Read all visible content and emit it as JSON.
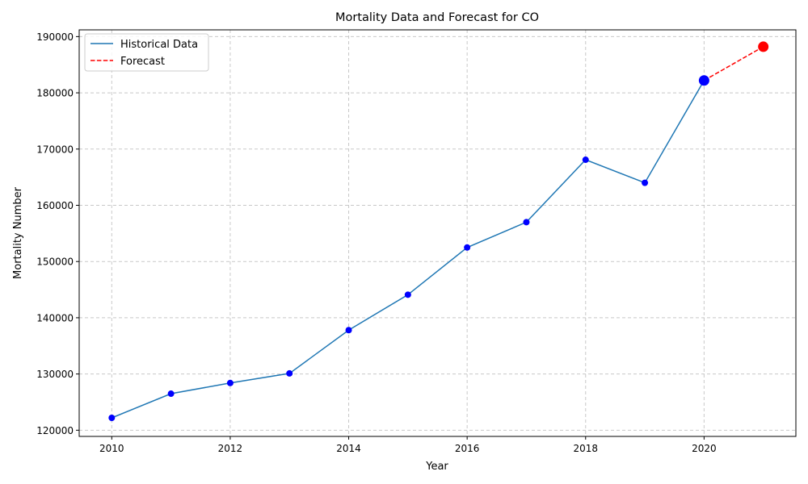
{
  "chart_data": {
    "type": "line",
    "title": "Mortality Data and Forecast for CO",
    "xlabel": "Year",
    "ylabel": "Mortality Number",
    "xlim": [
      2009.45,
      2021.55
    ],
    "ylim": [
      118900,
      191200
    ],
    "x_ticks": [
      2010,
      2012,
      2014,
      2016,
      2018,
      2020
    ],
    "y_ticks": [
      120000,
      130000,
      140000,
      150000,
      160000,
      170000,
      180000,
      190000
    ],
    "grid": true,
    "legend_position": "top-left",
    "series": [
      {
        "name": "Historical Data",
        "color": "#1f77b4",
        "marker_color": "#0000ff",
        "line_style": "solid",
        "x": [
          2010,
          2011,
          2012,
          2013,
          2014,
          2015,
          2016,
          2017,
          2018,
          2019,
          2020
        ],
        "y": [
          122200,
          126500,
          128400,
          130100,
          137800,
          144100,
          152500,
          157000,
          168100,
          164000,
          182200
        ]
      },
      {
        "name": "Forecast",
        "color": "#ff0000",
        "marker_color": "#ff0000",
        "line_style": "dashed",
        "x": [
          2020,
          2021
        ],
        "y": [
          182200,
          188200
        ]
      }
    ]
  }
}
